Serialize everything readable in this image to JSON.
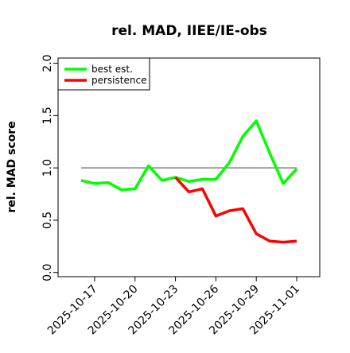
{
  "chart_data": {
    "type": "line",
    "title": "rel. MAD, IIEE/IE-obs",
    "y_label": "rel. MAD score",
    "x": [
      "2025-10-16",
      "2025-10-17",
      "2025-10-18",
      "2025-10-19",
      "2025-10-20",
      "2025-10-21",
      "2025-10-22",
      "2025-10-23",
      "2025-10-24",
      "2025-10-25",
      "2025-10-26",
      "2025-10-27",
      "2025-10-28",
      "2025-10-29",
      "2025-10-30",
      "2025-10-31",
      "2025-11-01"
    ],
    "series": [
      {
        "name": "best est.",
        "color": "#00ff00",
        "values": [
          0.88,
          0.85,
          0.86,
          0.79,
          0.8,
          1.02,
          0.88,
          0.91,
          0.87,
          0.89,
          0.89,
          1.05,
          1.3,
          1.45,
          1.14,
          0.85,
          0.99
        ]
      },
      {
        "name": "persistence",
        "color": "#ff0000",
        "values": [
          null,
          null,
          null,
          null,
          null,
          null,
          null,
          0.91,
          0.77,
          0.8,
          0.54,
          0.59,
          0.61,
          0.37,
          0.3,
          0.29,
          0.3
        ]
      }
    ],
    "reference_line": 1.0,
    "ylim": [
      -0.04,
      2.05
    ],
    "yticks": [
      {
        "value": 0,
        "label": "0.0"
      },
      {
        "value": 0.5,
        "label": "0.5"
      },
      {
        "value": 1,
        "label": "1.0"
      },
      {
        "value": 1.5,
        "label": "1.5"
      },
      {
        "value": 2,
        "label": "2.0"
      }
    ],
    "xticks": [
      "2025-10-17",
      "2025-10-20",
      "2025-10-23",
      "2025-10-26",
      "2025-10-29",
      "2025-11-01"
    ],
    "legend": "top-left"
  }
}
